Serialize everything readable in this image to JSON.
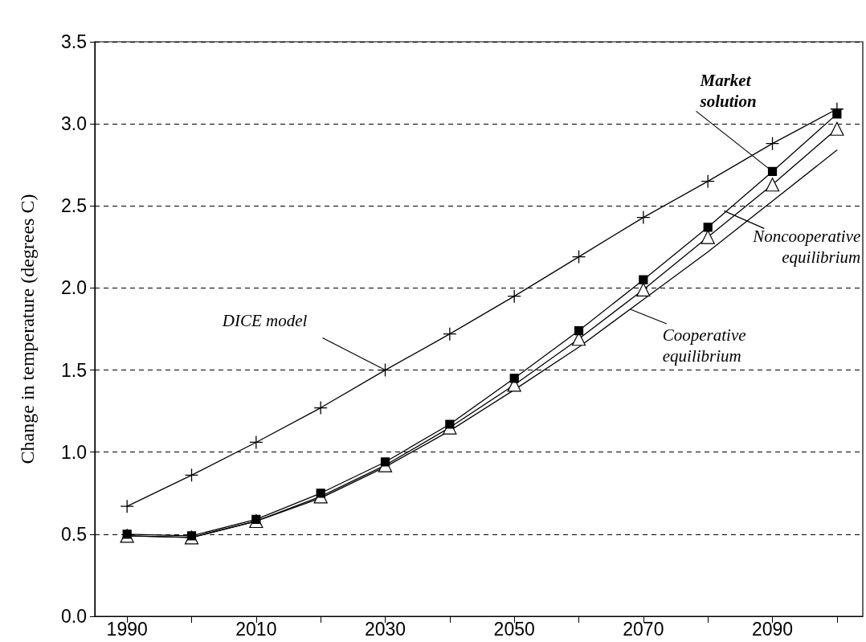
{
  "chart_data": {
    "type": "line",
    "ylabel": "Change in temperature (degrees C)",
    "x": [
      1990,
      2000,
      2010,
      2020,
      2030,
      2040,
      2050,
      2060,
      2070,
      2080,
      2090,
      2100
    ],
    "xlim": [
      1985,
      2104
    ],
    "xticks": [
      1990,
      {
        "value": 2000,
        "label": null
      },
      2010,
      {
        "value": 2020,
        "label": null
      },
      2030,
      {
        "value": 2040,
        "label": null
      },
      2050,
      {
        "value": 2060,
        "label": null
      },
      2070,
      {
        "value": 2080,
        "label": null
      },
      2090,
      {
        "value": 2100,
        "label": null
      }
    ],
    "ylim": [
      0,
      3.5
    ],
    "yticks": [
      {
        "value": 0,
        "label": "0.0"
      },
      0.5,
      {
        "value": 1,
        "label": "1.0"
      },
      1.5,
      {
        "value": 2,
        "label": "2.0"
      },
      2.5,
      {
        "value": 3,
        "label": "3.0"
      },
      3.5
    ],
    "grid": "y",
    "line_style": "solid",
    "series": [
      {
        "color": "#000000",
        "marker": "cross",
        "values": [
          0.67,
          0.86,
          1.06,
          1.27,
          1.5,
          1.72,
          1.95,
          2.19,
          2.43,
          2.65,
          2.88,
          3.09
        ]
      },
      {
        "color": "#000000",
        "marker": "square",
        "values": [
          0.5,
          0.49,
          0.59,
          0.75,
          0.94,
          1.17,
          1.45,
          1.74,
          2.05,
          2.37,
          2.71,
          3.06
        ]
      },
      {
        "color": "#000000",
        "marker": "triangle",
        "values": [
          0.49,
          0.48,
          0.58,
          0.73,
          0.92,
          1.15,
          1.41,
          1.69,
          1.99,
          2.31,
          2.63,
          2.97
        ]
      },
      {
        "color": "#000000",
        "marker": "none",
        "values": [
          0.49,
          0.48,
          0.58,
          0.72,
          0.91,
          1.13,
          1.38,
          1.64,
          1.93,
          2.22,
          2.53,
          2.84
        ]
      }
    ],
    "annotations": [
      {
        "text": "DICE model",
        "x": 2030,
        "y": 1.5
      },
      {
        "text": "Market\nsolution",
        "x": 2090,
        "y": 2.71
      },
      {
        "text": "Noncooperative\nequilibrium",
        "x": 2082.5,
        "y": 2.47
      },
      {
        "text": "Cooperative\nequilibrium",
        "x": 2068,
        "y": 1.87
      }
    ]
  }
}
